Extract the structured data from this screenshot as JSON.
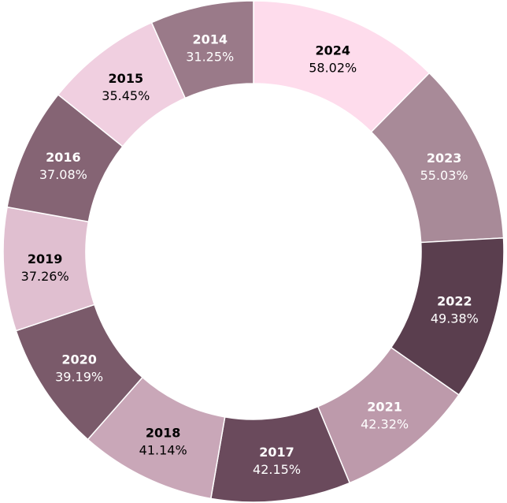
{
  "chart_data": {
    "type": "pie",
    "variant": "donut",
    "categories": [
      "2024",
      "2023",
      "2022",
      "2021",
      "2017",
      "2018",
      "2020",
      "2019",
      "2016",
      "2015",
      "2014"
    ],
    "values": [
      58.02,
      55.03,
      49.38,
      42.32,
      42.15,
      41.14,
      39.19,
      37.26,
      37.08,
      35.45,
      31.25
    ],
    "value_labels": [
      "58.02%",
      "55.03%",
      "49.38%",
      "42.32%",
      "42.15%",
      "41.14%",
      "39.19%",
      "37.26%",
      "37.08%",
      "35.45%",
      "31.25%"
    ],
    "colors": [
      "#fedcec",
      "#a88a98",
      "#5a3e4e",
      "#bd9aab",
      "#6a4a5c",
      "#c9a7b8",
      "#7a5a6a",
      "#e0bfd0",
      "#856474",
      "#f0cfe0",
      "#9a7a89"
    ],
    "label_colors": [
      "#000000",
      "#ffffff",
      "#ffffff",
      "#ffffff",
      "#ffffff",
      "#000000",
      "#ffffff",
      "#000000",
      "#ffffff",
      "#000000",
      "#ffffff"
    ],
    "start_angle_deg": 0,
    "direction": "clockwise",
    "legend": "none"
  }
}
